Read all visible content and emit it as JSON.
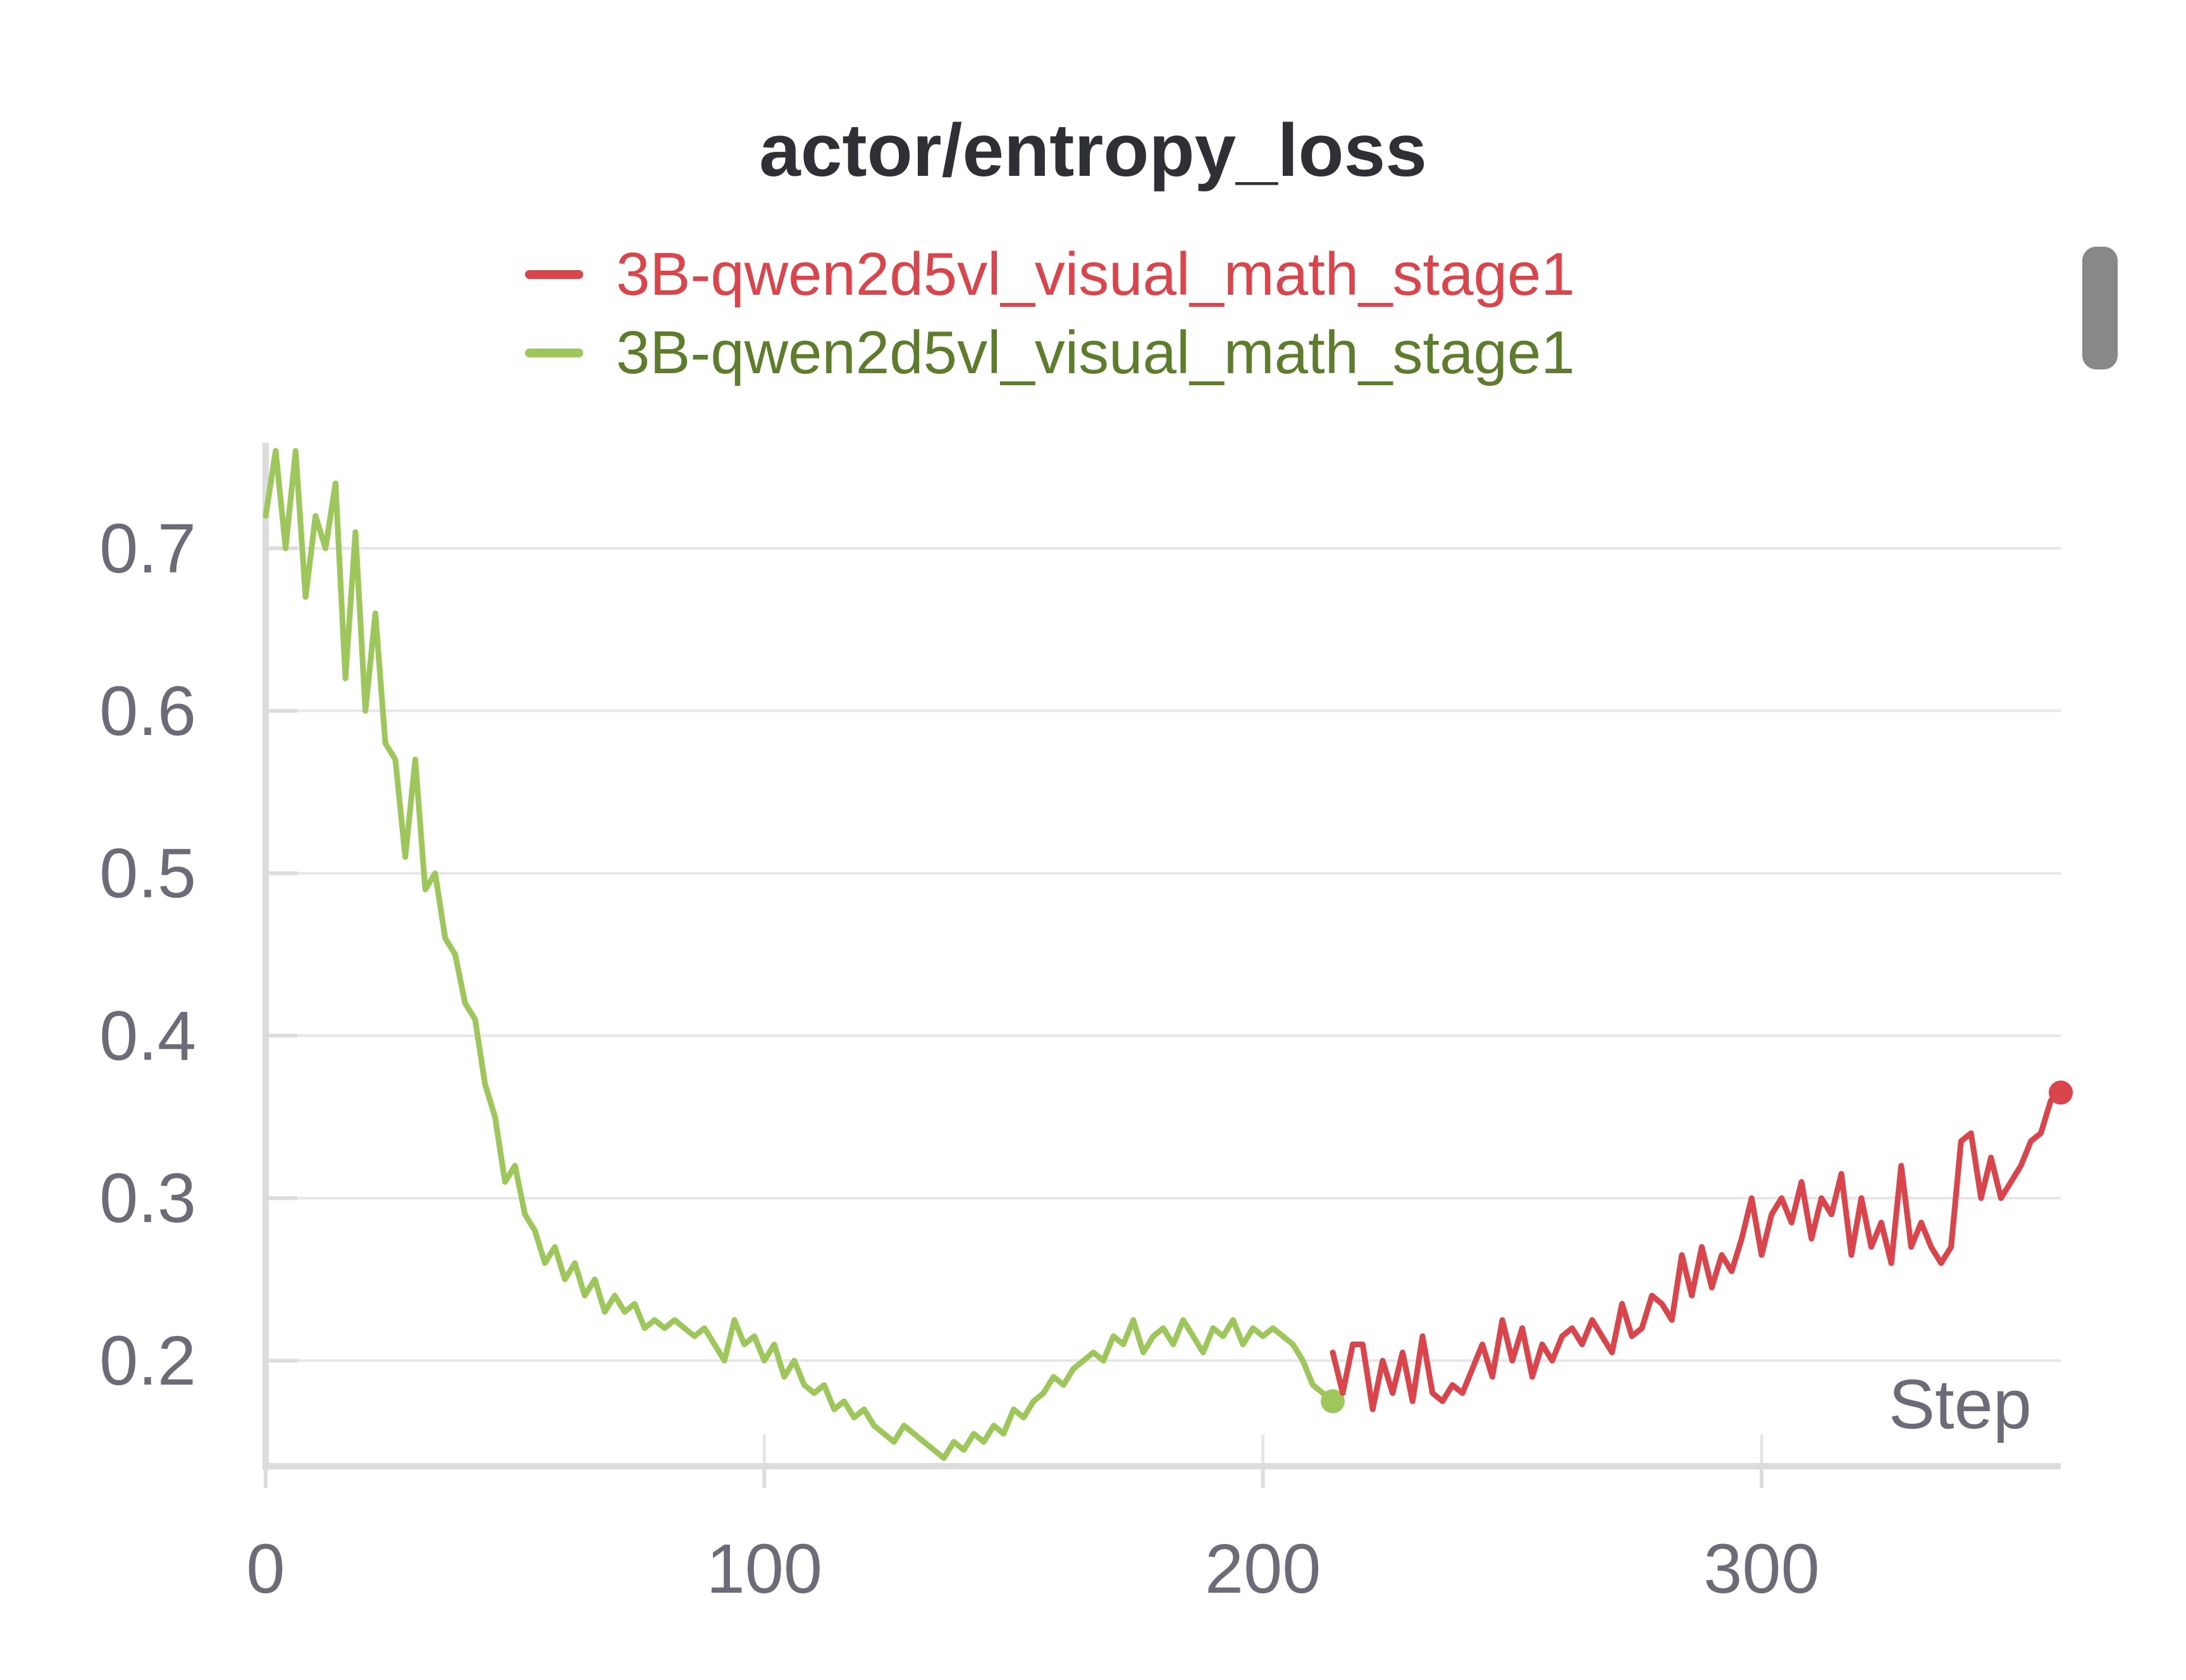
{
  "colors": {
    "background": "#ffffff",
    "title": "#2e3035",
    "tick_text": "#6b6c77",
    "grid": "#e6e6e6",
    "axis": "#dcdcdc",
    "scrollbar": "#888888"
  },
  "chart_data": {
    "type": "line",
    "title": "actor/entropy_loss",
    "xlabel": "Step",
    "ylabel": "",
    "xlim": [
      0,
      360
    ],
    "ylim": [
      0.135,
      0.765
    ],
    "x_ticks": [
      0,
      100,
      200,
      300
    ],
    "x_tick_labels": [
      "0",
      "100",
      "200",
      "300"
    ],
    "y_ticks": [
      0.2,
      0.3,
      0.4,
      0.5,
      0.6,
      0.7
    ],
    "y_tick_labels": [
      "0.2",
      "0.3",
      "0.4",
      "0.5",
      "0.6",
      "0.7"
    ],
    "grid": true,
    "legend_position": "top-center",
    "series": [
      {
        "name": "3B-qwen2d5vl_visual_math_stage1",
        "color": "#d9454b",
        "text_color": "#d9454b",
        "x": [
          214,
          216,
          218,
          220,
          222,
          224,
          226,
          228,
          230,
          232,
          234,
          236,
          238,
          240,
          242,
          244,
          246,
          248,
          250,
          252,
          254,
          256,
          258,
          260,
          262,
          264,
          266,
          268,
          270,
          272,
          274,
          276,
          278,
          280,
          282,
          284,
          286,
          288,
          290,
          292,
          294,
          296,
          298,
          300,
          302,
          304,
          306,
          308,
          310,
          312,
          314,
          316,
          318,
          320,
          322,
          324,
          326,
          328,
          330,
          332,
          334,
          336,
          338,
          340,
          342,
          344,
          346,
          348,
          350,
          352,
          354,
          356,
          358,
          360
        ],
        "values": [
          0.205,
          0.18,
          0.21,
          0.21,
          0.17,
          0.2,
          0.18,
          0.205,
          0.175,
          0.215,
          0.18,
          0.175,
          0.185,
          0.18,
          0.195,
          0.21,
          0.19,
          0.225,
          0.2,
          0.22,
          0.19,
          0.21,
          0.2,
          0.215,
          0.22,
          0.21,
          0.225,
          0.215,
          0.205,
          0.235,
          0.215,
          0.22,
          0.24,
          0.235,
          0.225,
          0.265,
          0.24,
          0.27,
          0.245,
          0.265,
          0.255,
          0.275,
          0.3,
          0.265,
          0.29,
          0.3,
          0.285,
          0.31,
          0.275,
          0.3,
          0.29,
          0.315,
          0.265,
          0.3,
          0.27,
          0.285,
          0.26,
          0.32,
          0.27,
          0.285,
          0.27,
          0.26,
          0.27,
          0.335,
          0.34,
          0.3,
          0.325,
          0.3,
          0.31,
          0.32,
          0.335,
          0.34,
          0.36,
          0.365
        ]
      },
      {
        "name": "3B-qwen2d5vl_visual_math_stage1",
        "color": "#9dc75a",
        "text_color": "#5e7d2c",
        "x": [
          0,
          2,
          4,
          6,
          8,
          10,
          12,
          14,
          16,
          18,
          20,
          22,
          24,
          26,
          28,
          30,
          32,
          34,
          36,
          38,
          40,
          42,
          44,
          46,
          48,
          50,
          52,
          54,
          56,
          58,
          60,
          62,
          64,
          66,
          68,
          70,
          72,
          74,
          76,
          78,
          80,
          82,
          84,
          86,
          88,
          90,
          92,
          94,
          96,
          98,
          100,
          102,
          104,
          106,
          108,
          110,
          112,
          114,
          116,
          118,
          120,
          122,
          124,
          126,
          128,
          130,
          132,
          134,
          136,
          138,
          140,
          142,
          144,
          146,
          148,
          150,
          152,
          154,
          156,
          158,
          160,
          162,
          164,
          166,
          168,
          170,
          172,
          174,
          176,
          178,
          180,
          182,
          184,
          186,
          188,
          190,
          192,
          194,
          196,
          198,
          200,
          202,
          204,
          206,
          208,
          210,
          212,
          214
        ],
        "values": [
          0.72,
          0.76,
          0.7,
          0.76,
          0.67,
          0.72,
          0.7,
          0.74,
          0.62,
          0.71,
          0.6,
          0.66,
          0.58,
          0.57,
          0.51,
          0.57,
          0.49,
          0.5,
          0.46,
          0.45,
          0.42,
          0.41,
          0.37,
          0.35,
          0.31,
          0.32,
          0.29,
          0.28,
          0.26,
          0.27,
          0.25,
          0.26,
          0.24,
          0.25,
          0.23,
          0.24,
          0.23,
          0.235,
          0.22,
          0.225,
          0.22,
          0.225,
          0.22,
          0.215,
          0.22,
          0.21,
          0.2,
          0.225,
          0.21,
          0.215,
          0.2,
          0.21,
          0.19,
          0.2,
          0.185,
          0.18,
          0.185,
          0.17,
          0.175,
          0.165,
          0.17,
          0.16,
          0.155,
          0.15,
          0.16,
          0.155,
          0.15,
          0.145,
          0.14,
          0.15,
          0.145,
          0.155,
          0.15,
          0.16,
          0.155,
          0.17,
          0.165,
          0.175,
          0.18,
          0.19,
          0.185,
          0.195,
          0.2,
          0.205,
          0.2,
          0.215,
          0.21,
          0.225,
          0.205,
          0.215,
          0.22,
          0.21,
          0.225,
          0.215,
          0.205,
          0.22,
          0.215,
          0.225,
          0.21,
          0.22,
          0.215,
          0.22,
          0.215,
          0.21,
          0.2,
          0.185,
          0.18,
          0.175
        ]
      }
    ]
  }
}
